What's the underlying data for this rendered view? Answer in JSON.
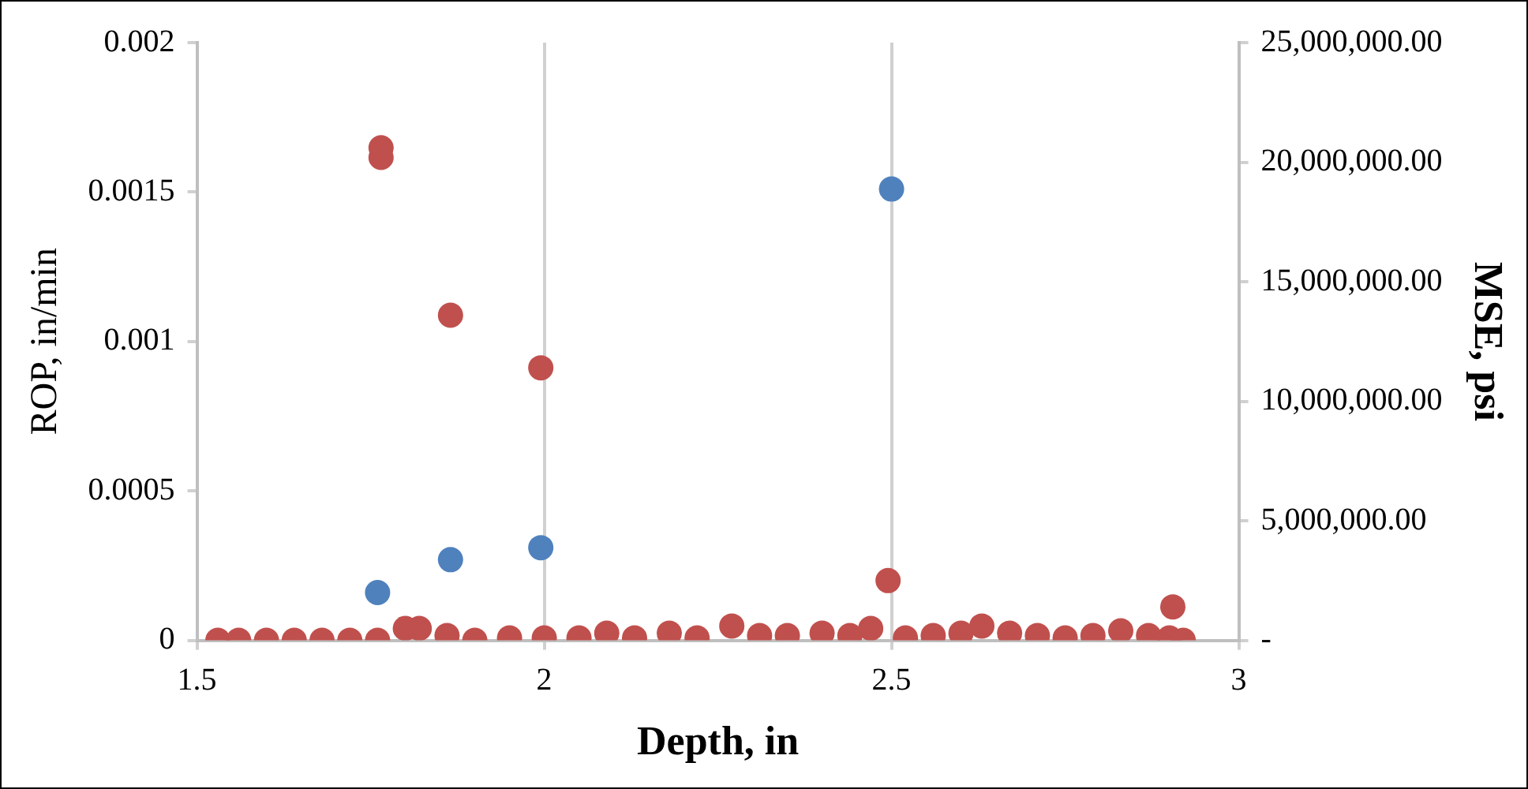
{
  "chart_data": {
    "type": "scatter",
    "xlabel": "Depth, in",
    "ylabel": "ROP, in/min",
    "y2label": "MSE, psi",
    "xlim": [
      1.5,
      3
    ],
    "xticks": [
      1.5,
      2,
      2.5,
      3
    ],
    "ylim": [
      0,
      0.002
    ],
    "yticks": [
      0,
      0.0005,
      0.001,
      0.0015,
      0.002
    ],
    "y2lim": [
      0,
      25000000
    ],
    "y2ticks": [
      {
        "value": 0,
        "label": "-"
      },
      {
        "value": 5000000,
        "label": "5,000,000.00"
      },
      {
        "value": 10000000,
        "label": "10,000,000.00"
      },
      {
        "value": 15000000,
        "label": "15,000,000.00"
      },
      {
        "value": 20000000,
        "label": "20,000,000.00"
      },
      {
        "value": 25000000,
        "label": "25,000,000.00"
      }
    ],
    "grid": "x",
    "marker": "circle",
    "legend": false,
    "series": [
      {
        "color": "#4f81bd",
        "x": [
          1.76,
          1.865,
          1.995,
          2.5
        ],
        "values": [
          0.00016,
          0.00027,
          0.00031,
          0.00151
        ]
      },
      {
        "color": "#c0504d",
        "axis": "y2",
        "x": [
          1.765,
          1.765,
          1.865,
          1.995,
          2.495,
          2.905,
          1.53,
          1.56,
          1.6,
          1.64,
          1.68,
          1.72,
          1.76,
          1.8,
          1.82,
          1.86,
          1.9,
          1.95,
          2.0,
          2.05,
          2.09,
          2.13,
          2.18,
          2.22,
          2.27,
          2.31,
          2.35,
          2.4,
          2.44,
          2.47,
          2.52,
          2.56,
          2.6,
          2.63,
          2.67,
          2.71,
          2.75,
          2.79,
          2.83,
          2.87,
          2.9,
          2.92
        ],
        "values": [
          20600000,
          20200000,
          13600000,
          11400000,
          2500000,
          1400000,
          0,
          0,
          0,
          0,
          0,
          0,
          0,
          500000,
          500000,
          200000,
          0,
          100000,
          100000,
          100000,
          300000,
          100000,
          300000,
          100000,
          600000,
          200000,
          200000,
          300000,
          200000,
          500000,
          100000,
          200000,
          300000,
          600000,
          300000,
          200000,
          100000,
          200000,
          400000,
          200000,
          100000,
          0
        ]
      }
    ]
  }
}
